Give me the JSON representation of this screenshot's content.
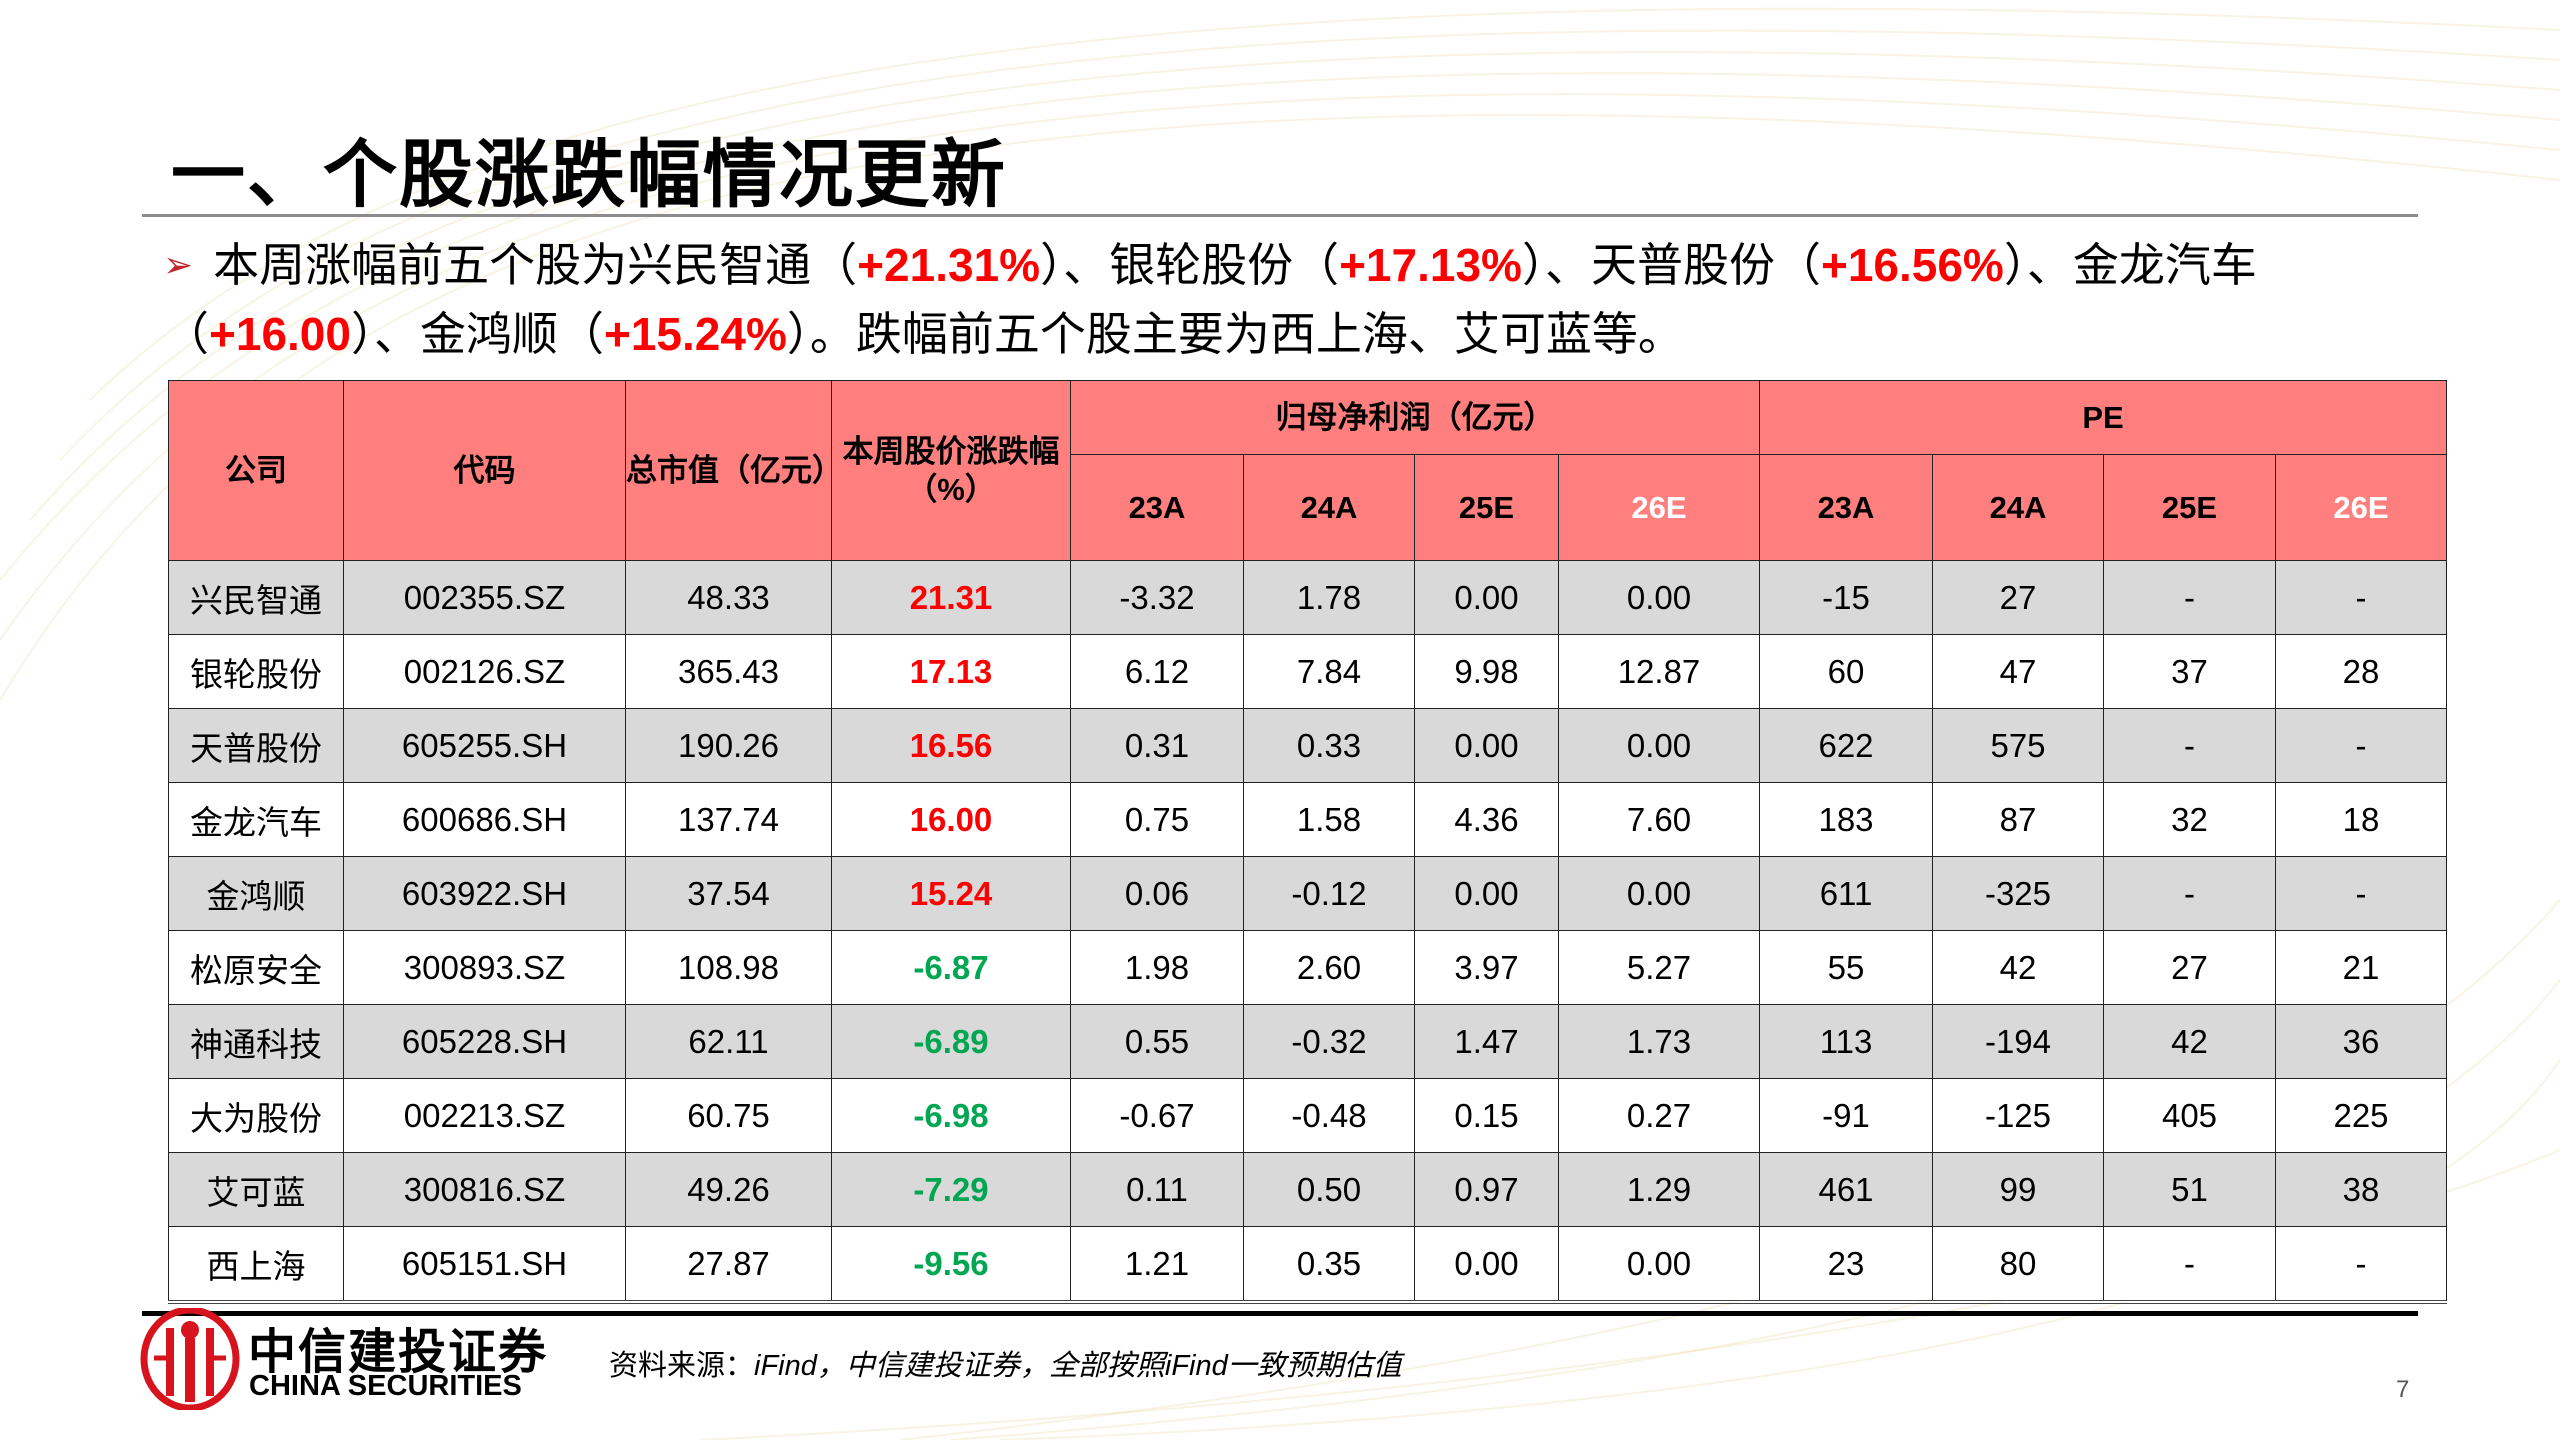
{
  "title": "一、个股涨跌幅情况更新",
  "bullet": {
    "icon": "arrow-right-icon",
    "p1": "本周涨幅前五个股为兴民智通（",
    "v1": "+21.31%",
    "p2": "）、银轮股份（",
    "v2": "+17.13%",
    "p3": "）、天普股份（",
    "v3": "+16.56%",
    "p4": "）、金龙汽车（",
    "v4": "+16.00",
    "p5": "）、金鸿顺（",
    "v5": "+15.24%",
    "p6": "）。跌幅前五个股主要为西上海、艾可蓝等。"
  },
  "table": {
    "headers": {
      "company": "公司",
      "code": "代码",
      "mktcap": "总市值（亿元）",
      "change": "本周股价涨跌幅（%）",
      "profit_group": "归母净利润（亿元）",
      "pe_group": "PE",
      "years": [
        "23A",
        "24A",
        "25E",
        "26E"
      ]
    },
    "rows": [
      {
        "name": "兴民智通",
        "code": "002355.SZ",
        "cap": "48.33",
        "chg": "21.31",
        "dir": "up",
        "profit": [
          "-3.32",
          "1.78",
          "0.00",
          "0.00"
        ],
        "pe": [
          "-15",
          "27",
          "-",
          "-"
        ]
      },
      {
        "name": "银轮股份",
        "code": "002126.SZ",
        "cap": "365.43",
        "chg": "17.13",
        "dir": "up",
        "profit": [
          "6.12",
          "7.84",
          "9.98",
          "12.87"
        ],
        "pe": [
          "60",
          "47",
          "37",
          "28"
        ]
      },
      {
        "name": "天普股份",
        "code": "605255.SH",
        "cap": "190.26",
        "chg": "16.56",
        "dir": "up",
        "profit": [
          "0.31",
          "0.33",
          "0.00",
          "0.00"
        ],
        "pe": [
          "622",
          "575",
          "-",
          "-"
        ]
      },
      {
        "name": "金龙汽车",
        "code": "600686.SH",
        "cap": "137.74",
        "chg": "16.00",
        "dir": "up",
        "profit": [
          "0.75",
          "1.58",
          "4.36",
          "7.60"
        ],
        "pe": [
          "183",
          "87",
          "32",
          "18"
        ]
      },
      {
        "name": "金鸿顺",
        "code": "603922.SH",
        "cap": "37.54",
        "chg": "15.24",
        "dir": "up",
        "profit": [
          "0.06",
          "-0.12",
          "0.00",
          "0.00"
        ],
        "pe": [
          "611",
          "-325",
          "-",
          "-"
        ]
      },
      {
        "name": "松原安全",
        "code": "300893.SZ",
        "cap": "108.98",
        "chg": "-6.87",
        "dir": "down",
        "profit": [
          "1.98",
          "2.60",
          "3.97",
          "5.27"
        ],
        "pe": [
          "55",
          "42",
          "27",
          "21"
        ]
      },
      {
        "name": "神通科技",
        "code": "605228.SH",
        "cap": "62.11",
        "chg": "-6.89",
        "dir": "down",
        "profit": [
          "0.55",
          "-0.32",
          "1.47",
          "1.73"
        ],
        "pe": [
          "113",
          "-194",
          "42",
          "36"
        ]
      },
      {
        "name": "大为股份",
        "code": "002213.SZ",
        "cap": "60.75",
        "chg": "-6.98",
        "dir": "down",
        "profit": [
          "-0.67",
          "-0.48",
          "0.15",
          "0.27"
        ],
        "pe": [
          "-91",
          "-125",
          "405",
          "225"
        ]
      },
      {
        "name": "艾可蓝",
        "code": "300816.SZ",
        "cap": "49.26",
        "chg": "-7.29",
        "dir": "down",
        "profit": [
          "0.11",
          "0.50",
          "0.97",
          "1.29"
        ],
        "pe": [
          "461",
          "99",
          "51",
          "38"
        ]
      },
      {
        "name": "西上海",
        "code": "605151.SH",
        "cap": "27.87",
        "chg": "-9.56",
        "dir": "down",
        "profit": [
          "1.21",
          "0.35",
          "0.00",
          "0.00"
        ],
        "pe": [
          "23",
          "80",
          "-",
          "-"
        ]
      }
    ]
  },
  "footer": {
    "logo_cn": "中信建投证券",
    "logo_en": "CHINA SECURITIES",
    "source_label": "资料来源：",
    "source_text": "iFind，中信建投证券，全部按照iFind一致预期估值",
    "page_number": "7"
  },
  "colors": {
    "header_bg": "#ff7f7f",
    "up": "#ff0000",
    "down": "#00a651",
    "row_alt": "#d9d9d9",
    "logo_red": "#d7141d"
  }
}
